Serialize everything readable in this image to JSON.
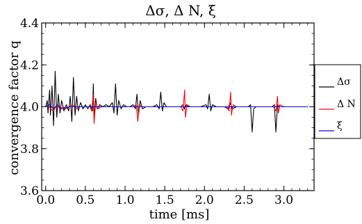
{
  "chart_data": {
    "type": "line",
    "title": "Δσ, Δ N,  ξ",
    "xlabel": "time [ms]",
    "ylabel": "convergence factor q",
    "xlim": [
      -0.05,
      3.38
    ],
    "ylim": [
      3.6,
      4.4
    ],
    "xticks": [
      0.0,
      0.5,
      1.0,
      1.5,
      2.0,
      2.5,
      3.0
    ],
    "xtick_labels": [
      "0.0",
      "0.5",
      "1.0",
      "1.5",
      "2.0",
      "2.5",
      "3.0"
    ],
    "yticks": [
      3.6,
      3.8,
      4.0,
      4.2,
      4.4
    ],
    "ytick_labels": [
      "3.6",
      "3.8",
      "4.0",
      "4.2",
      "4.4"
    ],
    "grid": false,
    "legend": "outside-right",
    "series": [
      {
        "name": "Δσ",
        "color": "#000000",
        "points": [
          [
            0.0,
            4.0
          ],
          [
            0.02,
            4.03
          ],
          [
            0.03,
            3.97
          ],
          [
            0.05,
            4.08
          ],
          [
            0.06,
            3.96
          ],
          [
            0.08,
            4.1
          ],
          [
            0.1,
            3.91
          ],
          [
            0.12,
            4.17
          ],
          [
            0.14,
            3.95
          ],
          [
            0.16,
            4.06
          ],
          [
            0.18,
            3.97
          ],
          [
            0.2,
            4.03
          ],
          [
            0.23,
            3.98
          ],
          [
            0.26,
            4.01
          ],
          [
            0.29,
            3.98
          ],
          [
            0.31,
            4.05
          ],
          [
            0.33,
            3.93
          ],
          [
            0.35,
            4.14
          ],
          [
            0.37,
            3.96
          ],
          [
            0.39,
            4.05
          ],
          [
            0.41,
            3.98
          ],
          [
            0.44,
            4.02
          ],
          [
            0.47,
            3.99
          ],
          [
            0.5,
            4.01
          ],
          [
            0.53,
            3.99
          ],
          [
            0.56,
            4.01
          ],
          [
            0.59,
            3.98
          ],
          [
            0.6,
            4.11
          ],
          [
            0.61,
            3.95
          ],
          [
            0.63,
            4.04
          ],
          [
            0.65,
            3.99
          ],
          [
            0.68,
            4.01
          ],
          [
            0.72,
            4.0
          ],
          [
            0.76,
            4.01
          ],
          [
            0.8,
            4.0
          ],
          [
            0.84,
            4.02
          ],
          [
            0.86,
            3.97
          ],
          [
            0.88,
            4.11
          ],
          [
            0.9,
            3.96
          ],
          [
            0.92,
            4.03
          ],
          [
            0.95,
            3.99
          ],
          [
            0.98,
            4.01
          ],
          [
            1.02,
            4.0
          ],
          [
            1.06,
            4.0
          ],
          [
            1.1,
            4.01
          ],
          [
            1.13,
            3.99
          ],
          [
            1.15,
            4.06
          ],
          [
            1.17,
            3.96
          ],
          [
            1.19,
            4.03
          ],
          [
            1.22,
            3.99
          ],
          [
            1.26,
            4.0
          ],
          [
            1.3,
            4.0
          ],
          [
            1.35,
            4.0
          ],
          [
            1.4,
            4.01
          ],
          [
            1.43,
            3.99
          ],
          [
            1.45,
            4.07
          ],
          [
            1.47,
            3.98
          ],
          [
            1.49,
            4.02
          ],
          [
            1.52,
            4.0
          ],
          [
            1.56,
            4.0
          ],
          [
            1.6,
            4.0
          ],
          [
            1.65,
            4.0
          ],
          [
            1.7,
            4.0
          ],
          [
            1.73,
            4.01
          ],
          [
            1.75,
            3.99
          ],
          [
            1.77,
            4.01
          ],
          [
            1.8,
            4.0
          ],
          [
            1.85,
            4.0
          ],
          [
            1.9,
            4.0
          ],
          [
            1.95,
            4.0
          ],
          [
            2.02,
            4.01
          ],
          [
            2.04,
            3.99
          ],
          [
            2.06,
            4.06
          ],
          [
            2.08,
            3.98
          ],
          [
            2.1,
            4.01
          ],
          [
            2.15,
            4.0
          ],
          [
            2.2,
            4.0
          ],
          [
            2.25,
            4.0
          ],
          [
            2.3,
            3.99
          ],
          [
            2.32,
            4.02
          ],
          [
            2.35,
            3.99
          ],
          [
            2.4,
            4.0
          ],
          [
            2.45,
            4.0
          ],
          [
            2.5,
            4.0
          ],
          [
            2.55,
            4.0
          ],
          [
            2.58,
            4.01
          ],
          [
            2.6,
            3.88
          ],
          [
            2.62,
            3.99
          ],
          [
            2.65,
            4.0
          ],
          [
            2.7,
            4.0
          ],
          [
            2.75,
            4.0
          ],
          [
            2.8,
            4.0
          ],
          [
            2.85,
            4.0
          ],
          [
            2.88,
            4.01
          ],
          [
            2.9,
            3.88
          ],
          [
            2.92,
            4.01
          ],
          [
            2.95,
            4.0
          ],
          [
            3.0,
            4.0
          ],
          [
            3.05,
            4.0
          ],
          [
            3.1,
            4.0
          ],
          [
            3.15,
            4.0
          ],
          [
            3.2,
            4.0
          ],
          [
            3.25,
            4.0
          ],
          [
            3.3,
            4.0
          ]
        ]
      },
      {
        "name": "Δ N",
        "color": "#ff0000",
        "points": [
          [
            0.0,
            4.0
          ],
          [
            0.03,
            4.01
          ],
          [
            0.06,
            3.99
          ],
          [
            0.1,
            3.98
          ],
          [
            0.14,
            4.01
          ],
          [
            0.18,
            3.99
          ],
          [
            0.22,
            4.0
          ],
          [
            0.26,
            3.99
          ],
          [
            0.3,
            4.0
          ],
          [
            0.34,
            4.01
          ],
          [
            0.38,
            3.99
          ],
          [
            0.42,
            4.0
          ],
          [
            0.5,
            4.0
          ],
          [
            0.56,
            4.0
          ],
          [
            0.58,
            3.98
          ],
          [
            0.6,
            4.06
          ],
          [
            0.61,
            3.92
          ],
          [
            0.63,
            4.02
          ],
          [
            0.66,
            3.99
          ],
          [
            0.7,
            4.0
          ],
          [
            0.8,
            4.0
          ],
          [
            0.9,
            4.0
          ],
          [
            1.0,
            4.0
          ],
          [
            1.1,
            4.0
          ],
          [
            1.14,
            4.01
          ],
          [
            1.16,
            3.93
          ],
          [
            1.18,
            4.01
          ],
          [
            1.22,
            4.0
          ],
          [
            1.3,
            4.0
          ],
          [
            1.4,
            4.0
          ],
          [
            1.5,
            4.0
          ],
          [
            1.6,
            4.0
          ],
          [
            1.7,
            4.0
          ],
          [
            1.73,
            3.98
          ],
          [
            1.75,
            4.08
          ],
          [
            1.76,
            3.95
          ],
          [
            1.78,
            4.01
          ],
          [
            1.82,
            4.0
          ],
          [
            1.9,
            4.0
          ],
          [
            2.0,
            4.0
          ],
          [
            2.1,
            4.0
          ],
          [
            2.2,
            4.0
          ],
          [
            2.28,
            4.0
          ],
          [
            2.31,
            3.98
          ],
          [
            2.33,
            4.07
          ],
          [
            2.34,
            3.96
          ],
          [
            2.36,
            4.01
          ],
          [
            2.4,
            4.0
          ],
          [
            2.5,
            4.0
          ],
          [
            2.6,
            4.0
          ],
          [
            2.7,
            4.0
          ],
          [
            2.8,
            4.0
          ],
          [
            2.87,
            4.0
          ],
          [
            2.9,
            3.98
          ],
          [
            2.92,
            4.05
          ],
          [
            2.93,
            3.97
          ],
          [
            2.95,
            4.01
          ],
          [
            3.0,
            4.0
          ],
          [
            3.1,
            4.0
          ],
          [
            3.2,
            4.0
          ],
          [
            3.3,
            4.0
          ]
        ]
      },
      {
        "name": "ξ",
        "color": "#0000ff",
        "points": [
          [
            0.0,
            4.0
          ],
          [
            0.05,
            4.01
          ],
          [
            0.1,
            3.99
          ],
          [
            0.15,
            4.01
          ],
          [
            0.2,
            3.99
          ],
          [
            0.3,
            4.0
          ],
          [
            0.4,
            4.0
          ],
          [
            0.5,
            4.0
          ],
          [
            0.6,
            4.0
          ],
          [
            0.7,
            4.0
          ],
          [
            0.8,
            4.0
          ],
          [
            0.9,
            4.0
          ],
          [
            1.0,
            4.0
          ],
          [
            1.1,
            4.0
          ],
          [
            1.2,
            4.0
          ],
          [
            1.3,
            4.0
          ],
          [
            1.4,
            4.0
          ],
          [
            1.5,
            4.0
          ],
          [
            1.6,
            4.0
          ],
          [
            1.7,
            4.0
          ],
          [
            1.8,
            4.0
          ],
          [
            1.9,
            4.0
          ],
          [
            2.0,
            4.0
          ],
          [
            2.1,
            4.0
          ],
          [
            2.2,
            4.0
          ],
          [
            2.3,
            4.0
          ],
          [
            2.4,
            4.0
          ],
          [
            2.5,
            4.0
          ],
          [
            2.6,
            4.0
          ],
          [
            2.7,
            4.0
          ],
          [
            2.8,
            4.0
          ],
          [
            2.9,
            4.0
          ],
          [
            3.0,
            4.0
          ],
          [
            3.1,
            4.0
          ],
          [
            3.2,
            4.0
          ],
          [
            3.3,
            4.0
          ]
        ]
      }
    ]
  }
}
